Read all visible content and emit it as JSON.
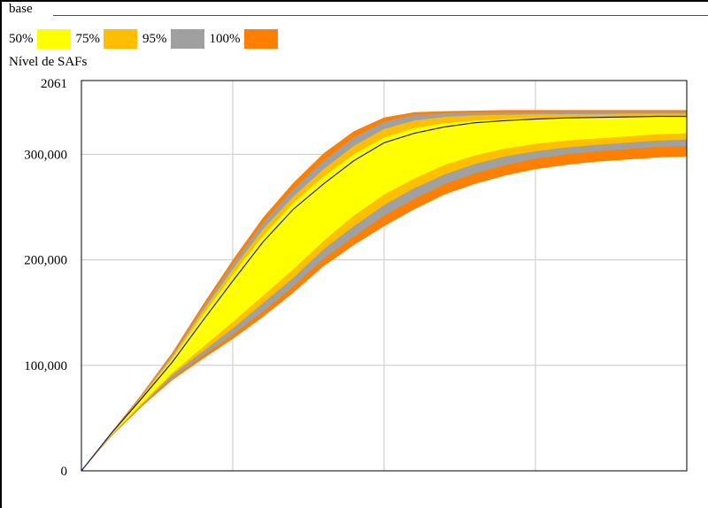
{
  "series_label": "base",
  "variable_label": "Nível de SAFs",
  "legend": [
    {
      "label": "50%",
      "color": "#ffff00"
    },
    {
      "label": "75%",
      "color": "#ffbf00"
    },
    {
      "label": "95%",
      "color": "#a0a0a0"
    },
    {
      "label": "100%",
      "color": "#ff8000"
    }
  ],
  "colors": {
    "base_line": "#3b3bd6",
    "grid": "#c8c8c8"
  },
  "chart_data": {
    "type": "area",
    "title": "",
    "xlabel": "",
    "ylabel": "Nível de SAFs",
    "x_range": [
      0,
      1
    ],
    "x_tick_fractions": [
      0,
      0.25,
      0.5,
      0.75,
      1
    ],
    "ylim": [
      0,
      370000
    ],
    "y_ticks": [
      0,
      100000,
      200000,
      300000
    ],
    "y_tick_labels": [
      "0",
      "100,000",
      "200,000",
      "300,000"
    ],
    "y_top_label": "2061",
    "grid": true,
    "legend_placement": "top-left",
    "x": [
      0,
      0.05,
      0.1,
      0.15,
      0.2,
      0.25,
      0.3,
      0.35,
      0.4,
      0.45,
      0.5,
      0.55,
      0.6,
      0.65,
      0.7,
      0.75,
      0.8,
      0.85,
      0.9,
      0.95,
      1
    ],
    "base": [
      0,
      36000,
      69000,
      103000,
      142000,
      180000,
      217000,
      248000,
      272000,
      294000,
      311000,
      320000,
      326000,
      330000,
      332000,
      333500,
      334500,
      335000,
      335500,
      336000,
      336000
    ],
    "bands": [
      {
        "name": "100%",
        "upper": [
          0,
          37000,
          73000,
          112000,
          157000,
          200000,
          240000,
          273000,
          301000,
          322000,
          335000,
          340000,
          341000,
          341500,
          342000,
          342000,
          342000,
          342000,
          342000,
          342000,
          342000
        ],
        "lower": [
          0,
          33000,
          61000,
          86000,
          106000,
          125000,
          146000,
          169000,
          194000,
          214000,
          232000,
          248000,
          262000,
          272000,
          280000,
          286000,
          290000,
          293000,
          295000,
          297000,
          298000
        ]
      },
      {
        "name": "95%",
        "upper": [
          0,
          36500,
          72000,
          110000,
          154000,
          196000,
          235000,
          267000,
          294000,
          316000,
          331000,
          337500,
          339000,
          339500,
          340000,
          340000,
          340500,
          340500,
          340500,
          340500,
          340500
        ],
        "lower": [
          0,
          33500,
          62000,
          88000,
          109000,
          129000,
          151000,
          175000,
          201000,
          222000,
          242000,
          258000,
          272000,
          282000,
          290000,
          296000,
          300000,
          303000,
          305000,
          307000,
          308000
        ]
      },
      {
        "name": "75%",
        "upper": [
          0,
          36200,
          71000,
          108000,
          151000,
          191000,
          229000,
          260000,
          286000,
          308000,
          324000,
          332000,
          335500,
          337000,
          337500,
          338000,
          338000,
          338000,
          338500,
          338500,
          338500
        ],
        "lower": [
          0,
          34000,
          63000,
          91000,
          113000,
          135000,
          159000,
          183000,
          210000,
          232000,
          252000,
          268000,
          281000,
          291000,
          298000,
          303000,
          306500,
          309000,
          311000,
          313000,
          314000
        ]
      },
      {
        "name": "50%",
        "upper": [
          0,
          36000,
          70000,
          106000,
          147000,
          186000,
          223000,
          254000,
          279000,
          300000,
          316000,
          325000,
          329500,
          332000,
          333500,
          334500,
          335000,
          335500,
          336000,
          336000,
          336500
        ],
        "lower": [
          0,
          34500,
          64000,
          93000,
          117000,
          141000,
          166000,
          191000,
          218000,
          242000,
          262000,
          277000,
          290000,
          299000,
          305500,
          310000,
          313000,
          315000,
          317000,
          319000,
          320000
        ]
      }
    ]
  }
}
